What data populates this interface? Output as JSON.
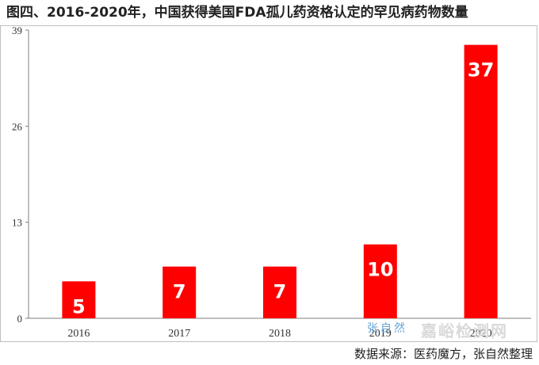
{
  "chart_data": {
    "type": "bar",
    "title": "图四、2016-2020年，中国获得美国FDA孤儿药资格认定的罕见病药物数量",
    "categories": [
      "2016",
      "2017",
      "2018",
      "2019",
      "2020"
    ],
    "values": [
      5,
      7,
      7,
      10,
      37
    ],
    "value_labels": [
      "5",
      "7",
      "7",
      "10",
      "37"
    ],
    "yticks": [
      0,
      13,
      26,
      39
    ],
    "ytick_labels": [
      "0",
      "13",
      "26",
      "39"
    ],
    "ylim": [
      0,
      39
    ],
    "xlabel": "",
    "ylabel": "",
    "grid": false,
    "bar_color": "#ff0000"
  },
  "source": "数据来源：医药魔方，张自然整理",
  "signature": "张自然",
  "watermark": "嘉峪检测网"
}
